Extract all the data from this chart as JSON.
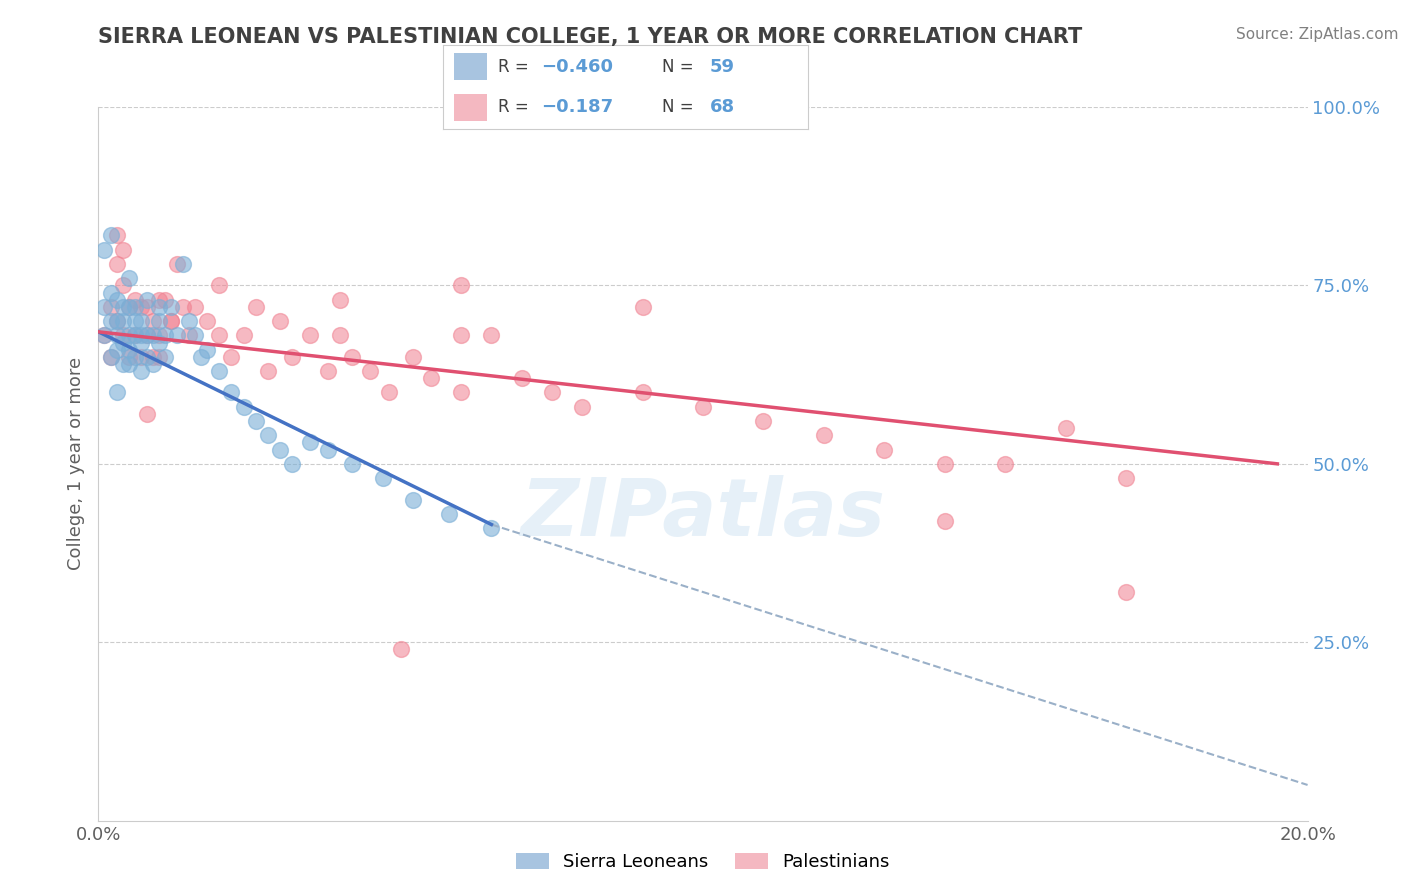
{
  "title": "SIERRA LEONEAN VS PALESTINIAN COLLEGE, 1 YEAR OR MORE CORRELATION CHART",
  "source": "Source: ZipAtlas.com",
  "ylabel": "College, 1 year or more",
  "xlim": [
    0.0,
    0.2
  ],
  "ylim": [
    0.0,
    1.0
  ],
  "y_ticks_right": [
    0.25,
    0.5,
    0.75,
    1.0
  ],
  "y_tick_labels_right": [
    "25.0%",
    "50.0%",
    "75.0%",
    "100.0%"
  ],
  "blue_scatter_x": [
    0.001,
    0.001,
    0.002,
    0.002,
    0.002,
    0.003,
    0.003,
    0.003,
    0.003,
    0.004,
    0.004,
    0.004,
    0.004,
    0.005,
    0.005,
    0.005,
    0.005,
    0.005,
    0.006,
    0.006,
    0.006,
    0.006,
    0.007,
    0.007,
    0.007,
    0.007,
    0.008,
    0.008,
    0.008,
    0.009,
    0.009,
    0.01,
    0.01,
    0.01,
    0.011,
    0.011,
    0.012,
    0.013,
    0.014,
    0.015,
    0.016,
    0.017,
    0.018,
    0.02,
    0.022,
    0.024,
    0.026,
    0.028,
    0.03,
    0.032,
    0.035,
    0.038,
    0.042,
    0.047,
    0.052,
    0.058,
    0.065,
    0.001,
    0.002,
    0.003
  ],
  "blue_scatter_y": [
    0.68,
    0.72,
    0.65,
    0.7,
    0.74,
    0.66,
    0.7,
    0.73,
    0.68,
    0.72,
    0.67,
    0.64,
    0.7,
    0.66,
    0.68,
    0.72,
    0.64,
    0.76,
    0.68,
    0.65,
    0.72,
    0.7,
    0.67,
    0.7,
    0.63,
    0.68,
    0.65,
    0.68,
    0.73,
    0.64,
    0.68,
    0.7,
    0.67,
    0.72,
    0.65,
    0.68,
    0.72,
    0.68,
    0.78,
    0.7,
    0.68,
    0.65,
    0.66,
    0.63,
    0.6,
    0.58,
    0.56,
    0.54,
    0.52,
    0.5,
    0.53,
    0.52,
    0.5,
    0.48,
    0.45,
    0.43,
    0.41,
    0.8,
    0.82,
    0.6
  ],
  "pink_scatter_x": [
    0.001,
    0.002,
    0.002,
    0.003,
    0.003,
    0.004,
    0.004,
    0.005,
    0.005,
    0.006,
    0.006,
    0.007,
    0.007,
    0.008,
    0.008,
    0.009,
    0.009,
    0.01,
    0.01,
    0.011,
    0.012,
    0.013,
    0.014,
    0.015,
    0.016,
    0.018,
    0.02,
    0.022,
    0.024,
    0.026,
    0.028,
    0.03,
    0.032,
    0.035,
    0.038,
    0.04,
    0.042,
    0.045,
    0.048,
    0.052,
    0.055,
    0.06,
    0.065,
    0.07,
    0.075,
    0.08,
    0.09,
    0.1,
    0.11,
    0.12,
    0.13,
    0.14,
    0.15,
    0.16,
    0.17,
    0.003,
    0.004,
    0.02,
    0.04,
    0.06,
    0.008,
    0.01,
    0.012,
    0.06,
    0.09,
    0.14,
    0.17,
    0.05
  ],
  "pink_scatter_y": [
    0.68,
    0.72,
    0.65,
    0.78,
    0.7,
    0.75,
    0.68,
    0.72,
    0.65,
    0.73,
    0.68,
    0.72,
    0.65,
    0.68,
    0.72,
    0.65,
    0.7,
    0.68,
    0.65,
    0.73,
    0.7,
    0.78,
    0.72,
    0.68,
    0.72,
    0.7,
    0.68,
    0.65,
    0.68,
    0.72,
    0.63,
    0.7,
    0.65,
    0.68,
    0.63,
    0.68,
    0.65,
    0.63,
    0.6,
    0.65,
    0.62,
    0.6,
    0.68,
    0.62,
    0.6,
    0.58,
    0.6,
    0.58,
    0.56,
    0.54,
    0.52,
    0.5,
    0.5,
    0.55,
    0.48,
    0.82,
    0.8,
    0.75,
    0.73,
    0.68,
    0.57,
    0.73,
    0.7,
    0.75,
    0.72,
    0.42,
    0.32,
    0.24
  ],
  "blue_color": "#7aaed6",
  "pink_color": "#f08090",
  "blue_line_color": "#4472c4",
  "pink_line_color": "#e05070",
  "gray_dash_color": "#9ab0c8",
  "background_color": "#ffffff",
  "grid_color": "#cccccc",
  "title_color": "#404040",
  "source_color": "#808080",
  "blue_line_x0": 0.0,
  "blue_line_x1": 0.065,
  "blue_line_y0": 0.685,
  "blue_line_y1": 0.415,
  "pink_line_x0": 0.0,
  "pink_line_x1": 0.195,
  "pink_line_y0": 0.685,
  "pink_line_y1": 0.5,
  "gray_line_x0": 0.065,
  "gray_line_x1": 0.2,
  "gray_line_y0": 0.415,
  "gray_line_y1": 0.05
}
